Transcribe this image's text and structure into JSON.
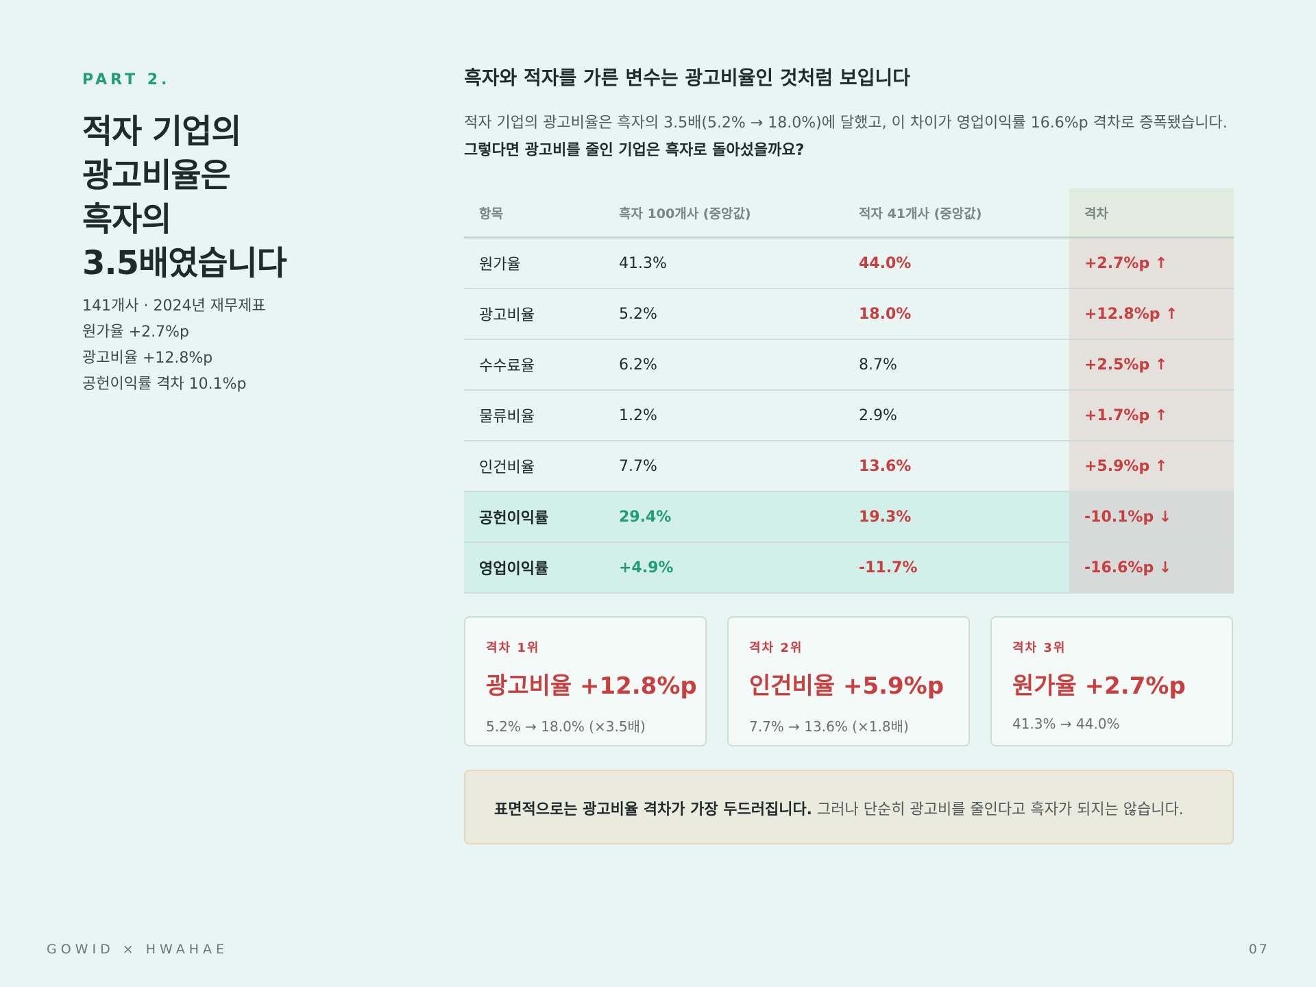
{
  "part": "PART 2.",
  "headline": [
    "적자 기업의",
    "광고비율은",
    "흑자의",
    "3.5배였습니다"
  ],
  "meta": [
    "141개사 · 2024년 재무제표",
    "원가율 +2.7%p",
    "광고비율 +12.8%p",
    "공헌이익률 격차 10.1%p"
  ],
  "section_title": "흑자와 적자를 가른 변수는 광고비율인 것처럼 보입니다",
  "intro": {
    "text": "적자 기업의 광고비율은 흑자의 3.5배(5.2% → 18.0%)에 달했고, 이 차이가 영업이익률 16.6%p 격차로 증폭됐습니다.",
    "emphasis": "그렇다면 광고비를 줄인 기업은 흑자로 돌아섰을까요?"
  },
  "table": {
    "header": [
      "항목",
      "흑자 100개사 (중앙값)",
      "적자 41개사 (중앙값)",
      "격차"
    ],
    "rows": [
      [
        "원가율",
        "41.3%",
        "44.0%",
        "+2.7%p ↑"
      ],
      [
        "광고비율",
        "5.2%",
        "18.0%",
        "+12.8%p ↑"
      ],
      [
        "수수료율",
        "6.2%",
        "8.7%",
        "+2.5%p ↑"
      ],
      [
        "물류비율",
        "1.2%",
        "2.9%",
        "+1.7%p ↑"
      ],
      [
        "인건비율",
        "7.7%",
        "13.6%",
        "+5.9%p ↑"
      ],
      [
        "공헌이익률",
        "29.4%",
        "19.3%",
        "-10.1%p ↓"
      ],
      [
        "영업이익률",
        "+4.9%",
        "-11.7%",
        "-16.6%p ↓"
      ]
    ]
  },
  "cards": [
    {
      "label": "격차 1위",
      "title": "광고비율 +12.8%p",
      "detail": "5.2% → 18.0% (×3.5배)"
    },
    {
      "label": "격차 2위",
      "title": "인건비율 +5.9%p",
      "detail": "7.7% → 13.6% (×1.8배)"
    },
    {
      "label": "격차 3위",
      "title": "원가율 +2.7%p",
      "detail": "41.3% → 44.0%"
    }
  ],
  "note": {
    "emphasis": "표면적으로는 광고비율 격차가 가장 두드러집니다.",
    "text": "그러나 단순히 광고비를 줄인다고 흑자가 되지는 않습니다."
  },
  "footer": {
    "brand": "GOWID × HWAHAE",
    "page": "07"
  }
}
